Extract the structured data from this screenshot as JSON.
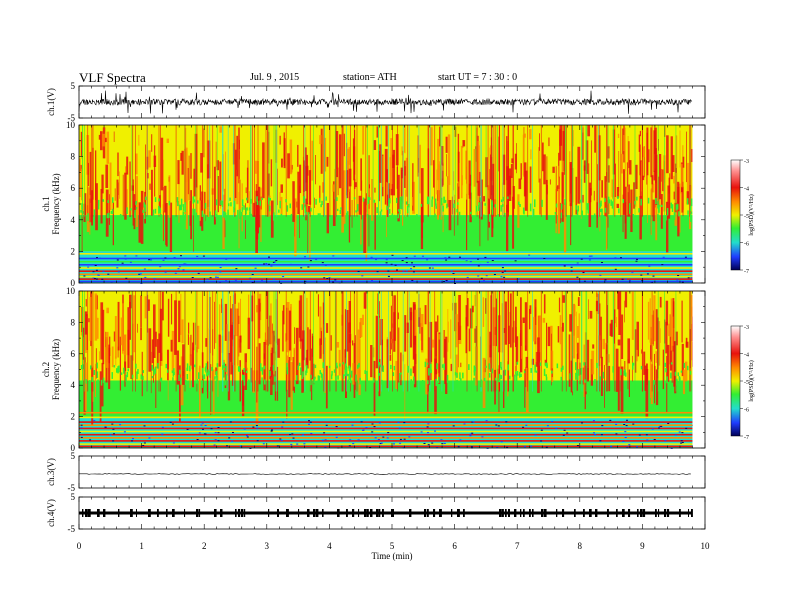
{
  "header": {
    "title": "VLF  Spectra",
    "date": "Jul.  9  , 2015",
    "station": "station= ATH",
    "start": "start  UT  =   7  : 30 : 0"
  },
  "chart_data": [
    {
      "type": "line",
      "panel": "ch1-waveform",
      "ylabel": "ch.1(V)",
      "ylim": [
        -5,
        5
      ],
      "yticks": [
        "5",
        "-5"
      ],
      "description_values": {
        "baseline_v": 0,
        "typical_amplitude_v": 1.5
      }
    },
    {
      "type": "heatmap",
      "panel": "ch1-spectrogram",
      "ylabel": "ch.1\nFrequency  (kHz)",
      "ylim": [
        0,
        10
      ],
      "yticks": [
        "0",
        "2",
        "4",
        "6",
        "8",
        "10"
      ],
      "zlabel": "log(PSD)(V²/Hz)",
      "zlim": [
        -7,
        -3
      ],
      "zticks": [
        "-3",
        "-4",
        "-5",
        "-6",
        "-7"
      ],
      "bands": [
        {
          "fmin": 0,
          "fmax": 2,
          "dominant": "mixed narrowband lines (yellow/red/green/blue)"
        },
        {
          "fmin": 2,
          "fmax": 4.3,
          "dominant": "green"
        },
        {
          "fmin": 4.3,
          "fmax": 10,
          "dominant": "yellow/red sferics"
        }
      ]
    },
    {
      "type": "heatmap",
      "panel": "ch2-spectrogram",
      "ylabel": "ch.2\nFrequency  (kHz)",
      "ylim": [
        0,
        10
      ],
      "yticks": [
        "0",
        "2",
        "4",
        "6",
        "8",
        "10"
      ],
      "zlabel": "log(PSD)(V²/Hz)",
      "zlim": [
        -7,
        -3
      ],
      "zticks": [
        "-3",
        "-4",
        "-5",
        "-6",
        "-7"
      ]
    },
    {
      "type": "line",
      "panel": "ch3-waveform",
      "ylabel": "ch.3(V)",
      "ylim": [
        -5,
        5
      ],
      "yticks": [
        "5",
        "-5"
      ],
      "description_values": {
        "baseline_v": 0.5
      }
    },
    {
      "type": "line",
      "panel": "ch4-waveform",
      "ylabel": "ch.4(V)",
      "ylim": [
        -5,
        5
      ],
      "yticks": [
        "5",
        "-5"
      ],
      "description_values": {
        "baseline_v": 0
      }
    }
  ],
  "xaxis": {
    "xlabel": "Time  (min)",
    "xlim": [
      0,
      10
    ],
    "xticks": [
      "0",
      "1",
      "2",
      "3",
      "4",
      "5",
      "6",
      "7",
      "8",
      "9",
      "10"
    ],
    "data_end_min": 9.8
  },
  "colors": {
    "red": "#e8120c",
    "orange": "#ff8c00",
    "yellow": "#f0f000",
    "green": "#33ee33",
    "cyan": "#22ddcc",
    "blue": "#1f3cff",
    "navy": "#000066"
  }
}
